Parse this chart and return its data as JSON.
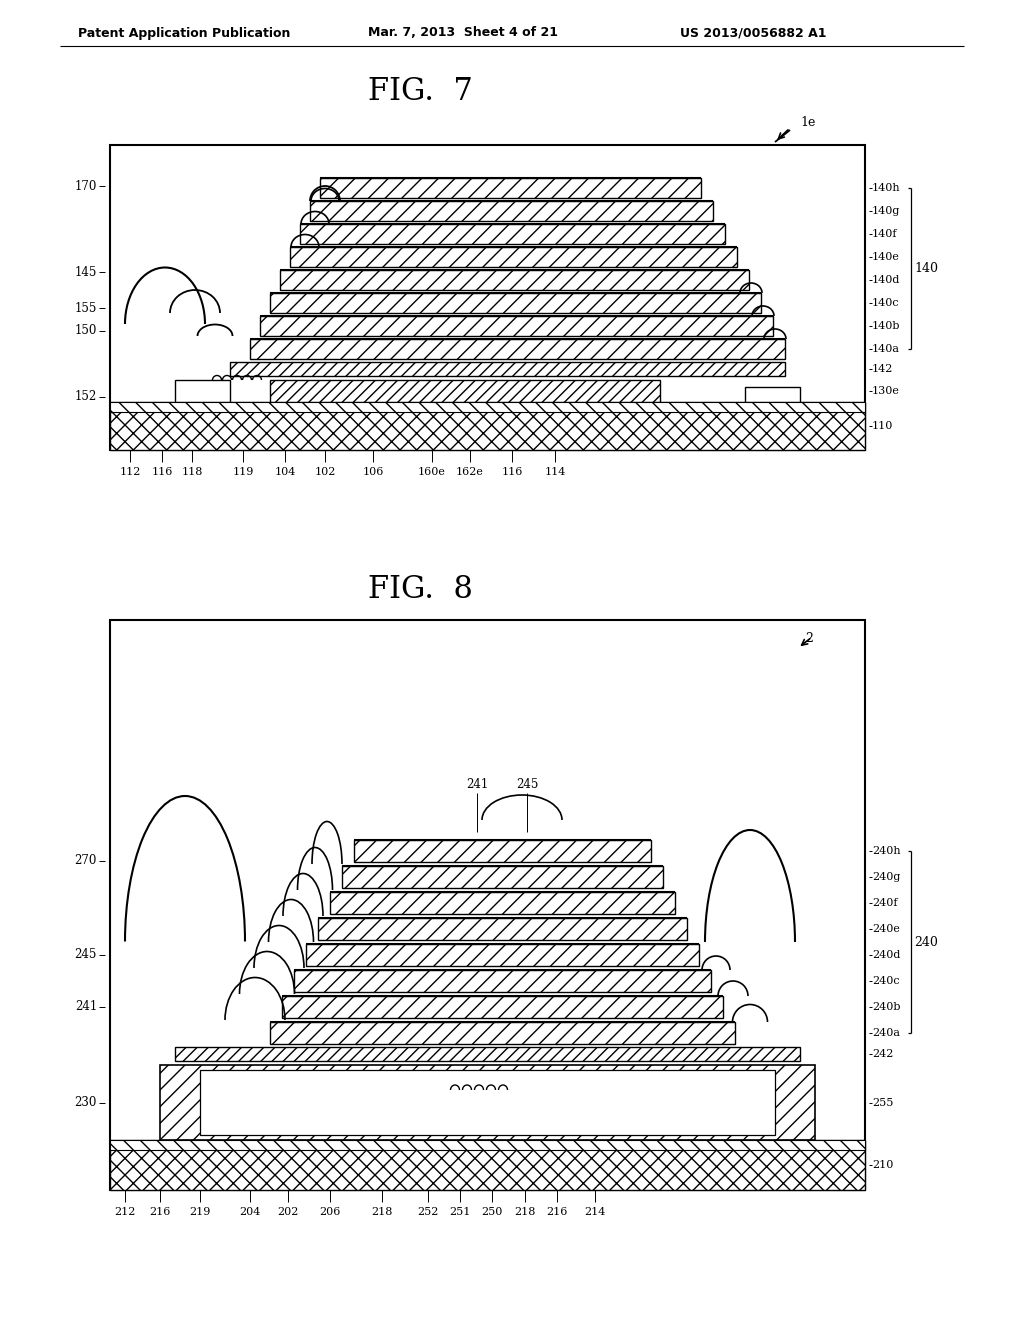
{
  "header_left": "Patent Application Publication",
  "header_mid": "Mar. 7, 2013  Sheet 4 of 21",
  "header_right": "US 2013/0056882 A1",
  "fig7_title": "FIG.  7",
  "fig8_title": "FIG.  8",
  "bg_color": "#ffffff",
  "fig7_ref": "1e",
  "fig8_ref": "2",
  "fig7_labels_right": [
    "140h",
    "140g",
    "140f",
    "140e",
    "140d",
    "140c",
    "140b",
    "140a",
    "142",
    "130e",
    "110"
  ],
  "fig7_labels_left": [
    "170",
    "145",
    "155",
    "150",
    "152"
  ],
  "fig7_labels_bot": [
    "112",
    "116",
    "118",
    "119",
    "104",
    "102",
    "106",
    "160e",
    "162e",
    "116",
    "114"
  ],
  "fig7_brace_label": "140",
  "fig8_labels_right": [
    "240h",
    "240g",
    "240f",
    "240e",
    "240d",
    "240c",
    "240b",
    "240a",
    "242",
    "255",
    "210"
  ],
  "fig8_labels_left": [
    "270",
    "245",
    "241",
    "230"
  ],
  "fig8_labels_bot": [
    "212",
    "216",
    "219",
    "204",
    "202",
    "206",
    "218",
    "252",
    "251",
    "250",
    "218",
    "216",
    "214"
  ],
  "fig8_brace_label": "240",
  "fig8_top_labels": [
    "241",
    "245"
  ]
}
